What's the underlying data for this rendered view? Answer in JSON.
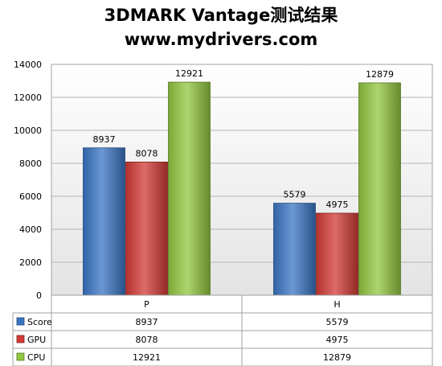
{
  "chart_data": {
    "type": "bar",
    "title": "3DMARK Vantage测试结果",
    "subtitle": "www.mydrivers.com",
    "categories": [
      "P",
      "H"
    ],
    "series": [
      {
        "name": "Score",
        "values": [
          8937,
          5579
        ],
        "color": "#3a75c4"
      },
      {
        "name": "GPU",
        "values": [
          8078,
          4975
        ],
        "color": "#d23a35"
      },
      {
        "name": "CPU",
        "values": [
          12921,
          12879
        ],
        "color": "#92c73f"
      }
    ],
    "ylim": [
      0,
      14000
    ],
    "yticks": [
      "0",
      "2000",
      "4000",
      "6000",
      "8000",
      "10000",
      "12000",
      "14000"
    ],
    "grid": true,
    "legend": "data-table-below",
    "data_labels": true
  }
}
